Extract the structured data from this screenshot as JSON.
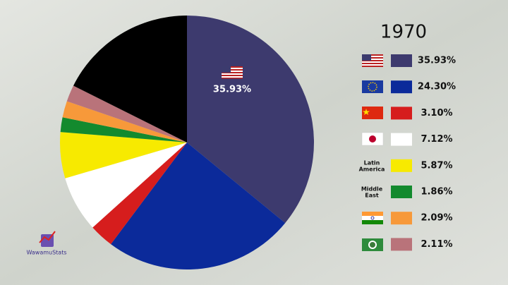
{
  "chart_data": {
    "type": "pie",
    "title": "1970",
    "categories": [
      null,
      null,
      null,
      null,
      "Latin America",
      "Middle East",
      null,
      null,
      null
    ],
    "values": [
      35.93,
      24.3,
      3.1,
      7.12,
      5.87,
      1.86,
      2.09,
      2.11,
      17.62
    ],
    "value_labels": [
      "35.93%",
      "24.30%",
      "3.10%",
      "7.12%",
      "5.87%",
      "1.86%",
      "2.09%",
      "2.11%",
      null
    ],
    "colors": [
      "#3d3a6e",
      "#0b2a9a",
      "#d61d1d",
      "#ffffff",
      "#f7ea00",
      "#138a2e",
      "#f7993a",
      "#b9737a",
      "#000000"
    ]
  },
  "logo": "WawamuStats"
}
